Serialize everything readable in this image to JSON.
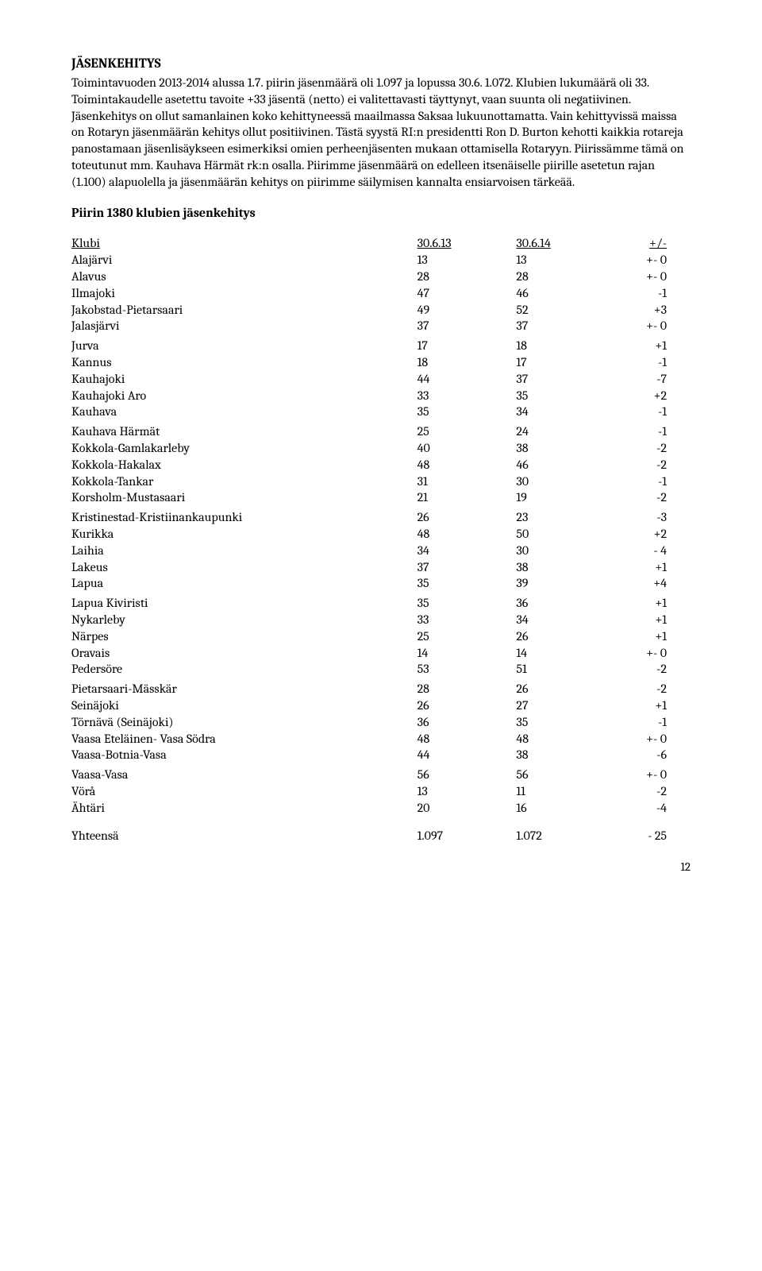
{
  "title": "JÄSENKEHITYS",
  "paragraph": "Toimintavuoden 2013-2014 alussa 1.7. piirin jäsenmäärä oli 1.097 ja lopussa 30.6. 1.072. Klubien lukumäärä oli 33. Toimintakaudelle asetettu tavoite +33 jäsentä (netto) ei valitettavasti täyttynyt, vaan suunta oli negatiivinen. Jäsenkehitys on ollut samanlainen koko kehittyneessä maailmassa Saksaa lukuunottamatta. Vain kehittyvissä maissa on Rotaryn jäsenmäärän kehitys ollut positiivinen. Tästä syystä RI:n presidentti Ron D. Burton kehotti kaikkia rotareja panostamaan jäsenlisäykseen esimerkiksi omien perheenjäsenten mukaan ottamisella Rotaryyn. Piirissämme tämä on toteutunut mm. Kauhava Härmät rk:n osalla. Piirimme jäsenmäärä on edelleen itsenäiselle piirille asetetun rajan (1.100) alapuolella ja jäsenmäärän kehitys on piirimme säilymisen kannalta ensiarvoisen tärkeää.",
  "subheading": "Piirin 1380 klubien jäsenkehitys",
  "header": {
    "name": "Klubi",
    "a": "30.6.13",
    "b": "30.6.14",
    "c": "+/-"
  },
  "groups": [
    [
      {
        "name": "Alajärvi",
        "a": "13",
        "b": "13",
        "c": "+- 0"
      },
      {
        "name": "Alavus",
        "a": "28",
        "b": "28",
        "c": "+- 0"
      },
      {
        "name": "Ilmajoki",
        "a": "47",
        "b": "46",
        "c": "-1"
      },
      {
        "name": "Jakobstad-Pietarsaari",
        "a": "49",
        "b": "52",
        "c": "+3"
      },
      {
        "name": "Jalasjärvi",
        "a": "37",
        "b": "37",
        "c": "+- 0"
      }
    ],
    [
      {
        "name": "Jurva",
        "a": "17",
        "b": "18",
        "c": "+1"
      },
      {
        "name": "Kannus",
        "a": "18",
        "b": "17",
        "c": "-1"
      },
      {
        "name": "Kauhajoki",
        "a": "44",
        "b": "37",
        "c": "-7"
      },
      {
        "name": "Kauhajoki Aro",
        "a": "33",
        "b": "35",
        "c": "+2"
      },
      {
        "name": "Kauhava",
        "a": "35",
        "b": "34",
        "c": "-1"
      }
    ],
    [
      {
        "name": "Kauhava Härmät",
        "a": "25",
        "b": "24",
        "c": "-1"
      },
      {
        "name": "Kokkola-Gamlakarleby",
        "a": "40",
        "b": "38",
        "c": "-2"
      },
      {
        "name": "Kokkola-Hakalax",
        "a": "48",
        "b": "46",
        "c": "-2"
      },
      {
        "name": "Kokkola-Tankar",
        "a": "31",
        "b": "30",
        "c": "-1"
      },
      {
        "name": "Korsholm-Mustasaari",
        "a": "21",
        "b": "19",
        "c": "-2"
      }
    ],
    [
      {
        "name": "Kristinestad-Kristiinankaupunki",
        "a": "26",
        "b": "23",
        "c": "-3"
      },
      {
        "name": "Kurikka",
        "a": "48",
        "b": "50",
        "c": "+2"
      },
      {
        "name": "Laihia",
        "a": "34",
        "b": "30",
        "c": "- 4"
      },
      {
        "name": "Lakeus",
        "a": "37",
        "b": "38",
        "c": "+1"
      },
      {
        "name": "Lapua",
        "a": "35",
        "b": "39",
        "c": "+4"
      }
    ],
    [
      {
        "name": "Lapua Kiviristi",
        "a": "35",
        "b": "36",
        "c": "+1"
      },
      {
        "name": "Nykarleby",
        "a": "33",
        "b": "34",
        "c": "+1"
      },
      {
        "name": "Närpes",
        "a": "25",
        "b": "26",
        "c": "+1"
      },
      {
        "name": "Oravais",
        "a": "14",
        "b": "14",
        "c": "+- 0"
      },
      {
        "name": "Pedersöre",
        "a": "53",
        "b": "51",
        "c": "-2"
      }
    ],
    [
      {
        "name": "Pietarsaari-Mässkär",
        "a": "28",
        "b": "26",
        "c": "-2"
      },
      {
        "name": "Seinäjoki",
        "a": "26",
        "b": "27",
        "c": "+1"
      },
      {
        "name": "Törnävä (Seinäjoki)",
        "a": "36",
        "b": "35",
        "c": "-1"
      },
      {
        "name": "Vaasa Eteläinen- Vasa Södra",
        "a": "48",
        "b": "48",
        "c": "+- 0"
      },
      {
        "name": "Vaasa-Botnia-Vasa",
        "a": "44",
        "b": "38",
        "c": "-6"
      }
    ],
    [
      {
        "name": "Vaasa-Vasa",
        "a": "56",
        "b": "56",
        "c": "+- 0"
      },
      {
        "name": "Vörå",
        "a": "13",
        "b": "11",
        "c": "-2"
      },
      {
        "name": "Ähtäri",
        "a": "20",
        "b": "16",
        "c": "-4"
      }
    ]
  ],
  "totals": {
    "name": "Yhteensä",
    "a": "1.097",
    "b": "1.072",
    "c": "- 25"
  },
  "pagenum": "12"
}
